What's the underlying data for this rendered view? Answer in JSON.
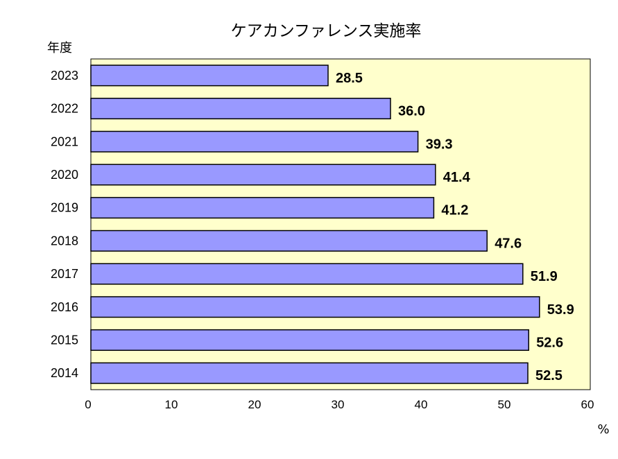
{
  "chart_data": {
    "type": "bar",
    "orientation": "horizontal",
    "title": "ケアカンファレンス実施率",
    "ylabel": "年度",
    "xlabel": "%",
    "categories": [
      "2023",
      "2022",
      "2021",
      "2020",
      "2019",
      "2018",
      "2017",
      "2016",
      "2015",
      "2014"
    ],
    "values": [
      28.5,
      36.0,
      39.3,
      41.4,
      41.2,
      47.6,
      51.9,
      53.9,
      52.6,
      52.5
    ],
    "data_labels": [
      "28.5",
      "36.0",
      "39.3",
      "41.4",
      "41.2",
      "47.6",
      "51.9",
      "53.9",
      "52.6",
      "52.5"
    ],
    "xlim": [
      0,
      60
    ],
    "xticks": [
      0,
      10,
      20,
      30,
      40,
      50,
      60
    ],
    "grid": false,
    "legend": "none",
    "colors": {
      "bar_fill": "#9999ff",
      "bar_stroke": "#000000",
      "plot_background": "#ffffcc",
      "page_background": "#ffffff"
    }
  }
}
